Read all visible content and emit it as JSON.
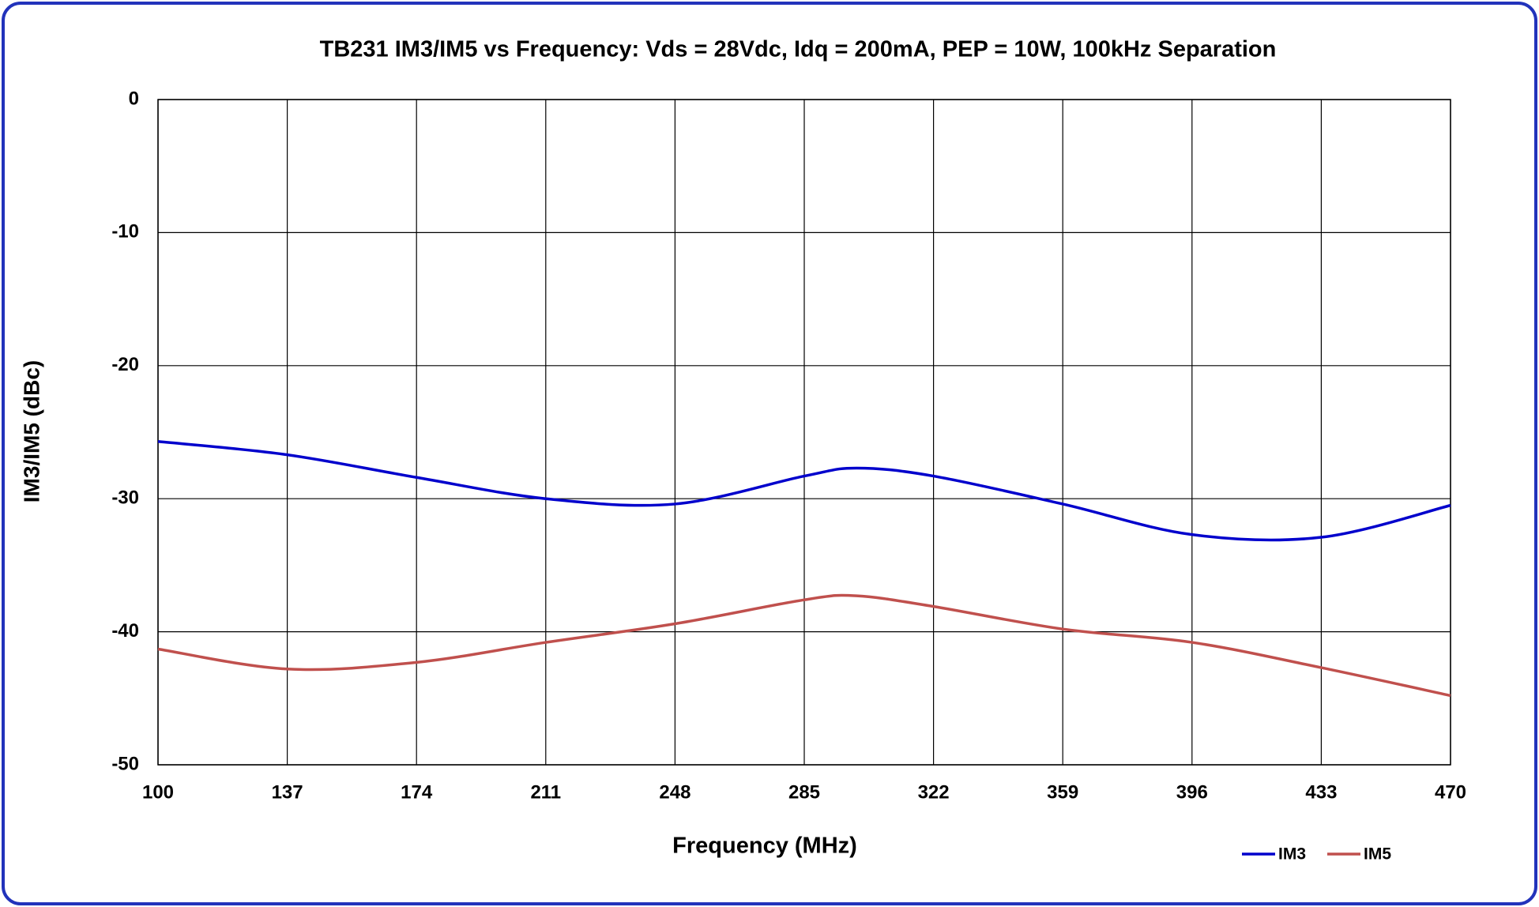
{
  "chart_data": {
    "type": "line",
    "title": "TB231  IM3/IM5 vs Frequency:  Vds = 28Vdc, Idq = 200mA, PEP = 10W, 100kHz Separation",
    "x_label": "Frequency (MHz)",
    "y_label": "IM3/IM5 (dBc)",
    "x": [
      100,
      137,
      174,
      211,
      248,
      285,
      300,
      322,
      359,
      396,
      433,
      470
    ],
    "series": [
      {
        "name": "IM3",
        "color": "#0000cc",
        "values": [
          -25.7,
          -26.7,
          -28.4,
          -30.0,
          -30.4,
          -28.3,
          -27.7,
          -28.3,
          -30.4,
          -32.7,
          -32.9,
          -30.5
        ]
      },
      {
        "name": "IM5",
        "color": "#c0504d",
        "values": [
          -41.3,
          -42.8,
          -42.3,
          -40.8,
          -39.4,
          -37.6,
          -37.3,
          -38.1,
          -39.8,
          -40.8,
          -42.7,
          -44.8
        ]
      }
    ],
    "xlim": [
      100,
      470
    ],
    "xticks": [
      100,
      137,
      174,
      211,
      248,
      285,
      322,
      359,
      396,
      433,
      470
    ],
    "ylim": [
      -50,
      0
    ],
    "yticks": [
      0,
      -10,
      -20,
      -30,
      -40,
      -50
    ],
    "grid": true,
    "legend": "bottom-right"
  }
}
